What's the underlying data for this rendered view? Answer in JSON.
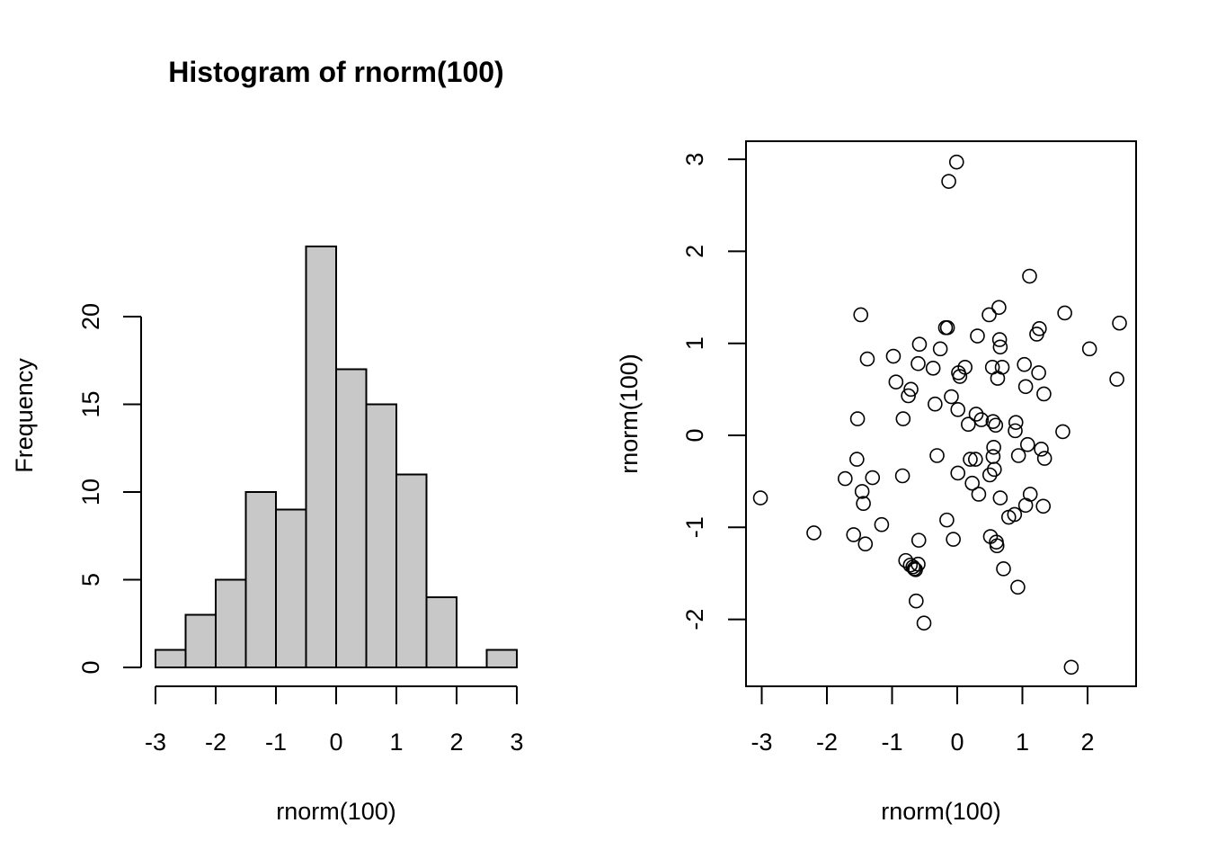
{
  "chart_data": [
    {
      "type": "bar",
      "subtype": "histogram",
      "title": "Histogram of rnorm(100)",
      "xlabel": "rnorm(100)",
      "ylabel": "Frequency",
      "bin_edges": [
        -3.0,
        -2.5,
        -2.0,
        -1.5,
        -1.0,
        -0.5,
        0.0,
        0.5,
        1.0,
        1.5,
        2.0,
        2.5,
        3.0
      ],
      "values": [
        1,
        3,
        5,
        10,
        9,
        24,
        17,
        15,
        11,
        4,
        0,
        1
      ],
      "xticks": [
        "-3",
        "-2",
        "-1",
        "0",
        "1",
        "2",
        "3"
      ],
      "yticks": [
        "0",
        "5",
        "10",
        "15",
        "20"
      ],
      "xlim": [
        -3,
        3
      ],
      "ylim": [
        0,
        24
      ],
      "bar_fill": "#c8c8c8",
      "grid": false
    },
    {
      "type": "scatter",
      "title": "",
      "xlabel": "rnorm(100)",
      "ylabel": "rnorm(100)",
      "xticks": [
        "-3",
        "-2",
        "-1",
        "0",
        "1",
        "2"
      ],
      "yticks": [
        "-2",
        "-1",
        "0",
        "1",
        "2",
        "3"
      ],
      "xlim": [
        -3.1,
        2.6
      ],
      "ylim": [
        -2.7,
        3.2
      ],
      "grid": false,
      "marker": "open-circle",
      "x": [
        -0.01,
        -0.13,
        1.11,
        1.65,
        2.03,
        2.49,
        2.45,
        -1.48,
        -0.18,
        -0.15,
        0.31,
        0.49,
        0.64,
        0.66,
        1.22,
        1.26,
        -0.58,
        -0.26,
        -1.38,
        -0.98,
        -0.6,
        -0.37,
        0.12,
        0.02,
        0.04,
        0.54,
        0.69,
        1.03,
        1.25,
        0.62,
        -0.94,
        -0.71,
        -0.75,
        -0.09,
        1.05,
        1.33,
        -0.34,
        0.01,
        0.29,
        -1.53,
        -0.83,
        0.37,
        0.17,
        0.9,
        0.89,
        1.62,
        0.55,
        0.59,
        1.29,
        0.65,
        1.08,
        1.34,
        0.56,
        0.28,
        0.2,
        -0.31,
        -1.54,
        0.94,
        0.55,
        0.01,
        0.57,
        -1.72,
        -1.3,
        0.23,
        0.5,
        0.33,
        -0.84,
        -1.46,
        1.12,
        0.66,
        -1.44,
        1.05,
        1.32,
        0.88,
        0.79,
        -0.16,
        -3.02,
        -1.16,
        -2.2,
        -1.59,
        0.51,
        -0.06,
        -1.41,
        0.6,
        -0.59,
        0.61,
        -0.79,
        -0.72,
        -0.6,
        -0.68,
        -0.66,
        0.71,
        -0.64,
        0.93,
        -0.63,
        -0.51,
        1.75
      ],
      "y": [
        2.97,
        2.76,
        1.73,
        1.33,
        0.94,
        1.22,
        0.61,
        1.31,
        1.17,
        1.17,
        1.08,
        1.31,
        1.39,
        0.96,
        1.1,
        1.16,
        0.99,
        0.94,
        0.83,
        0.86,
        0.78,
        0.73,
        0.74,
        0.68,
        0.64,
        0.74,
        0.74,
        0.77,
        0.68,
        0.62,
        0.58,
        0.5,
        0.43,
        0.42,
        0.53,
        0.45,
        0.34,
        0.28,
        0.23,
        0.18,
        0.18,
        0.17,
        0.12,
        0.14,
        0.05,
        0.04,
        0.15,
        0.11,
        -0.15,
        1.04,
        -0.1,
        -0.25,
        -0.13,
        -0.26,
        -0.26,
        -0.22,
        -0.26,
        -0.22,
        -0.23,
        -0.41,
        -0.37,
        -0.47,
        -0.46,
        -0.52,
        -0.43,
        -0.64,
        -0.44,
        -0.61,
        -0.64,
        -0.68,
        -0.74,
        -0.76,
        -0.77,
        -0.86,
        -0.89,
        -0.92,
        -0.68,
        -0.97,
        -1.06,
        -1.08,
        -1.1,
        -1.13,
        -1.18,
        -1.16,
        -1.14,
        -1.2,
        -1.36,
        -1.41,
        -1.4,
        -1.43,
        -1.45,
        -1.45,
        -1.46,
        -1.65,
        -1.8,
        -2.04,
        -2.52
      ]
    }
  ]
}
